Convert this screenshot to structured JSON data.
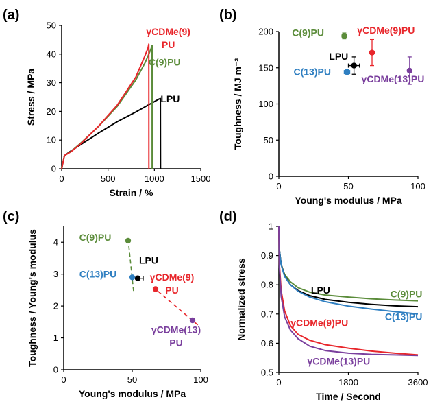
{
  "colors": {
    "LPU": "#000000",
    "C9PU": "#5b8c3a",
    "C13PU": "#2f7fc1",
    "gCDMe9PU": "#e8262b",
    "gCDMe13PU": "#7a3f9d"
  },
  "chart_data": [
    {
      "panel": "(a)",
      "type": "line",
      "xlabel": "Strain / %",
      "ylabel": "Stress / MPa",
      "xlim": [
        0,
        1500
      ],
      "ylim": [
        0,
        50
      ],
      "xticks": [
        "0",
        "500",
        "1000",
        "1500"
      ],
      "yticks": [
        "0",
        "10",
        "20",
        "30",
        "40",
        "50"
      ],
      "series": [
        {
          "key": "LPU",
          "x": [
            0,
            30,
            100,
            200,
            400,
            600,
            800,
            950,
            1050,
            1065,
            1066
          ],
          "y": [
            0,
            4.6,
            6.2,
            8.3,
            12.5,
            16.4,
            19.8,
            22.5,
            24.3,
            24.5,
            0
          ]
        },
        {
          "key": "C9PU",
          "x": [
            0,
            30,
            100,
            200,
            400,
            600,
            800,
            900,
            960,
            975,
            976
          ],
          "y": [
            0,
            4.6,
            6.0,
            8.8,
            14.8,
            21.8,
            31.0,
            37.0,
            41.5,
            43.0,
            0
          ]
        },
        {
          "key": "gCDMe9PU",
          "x": [
            0,
            30,
            100,
            200,
            400,
            600,
            800,
            880,
            930,
            940,
            941
          ],
          "y": [
            0,
            4.6,
            5.9,
            8.6,
            14.9,
            22.2,
            32.0,
            38.0,
            42.0,
            43.5,
            0
          ]
        }
      ],
      "annotations": [
        {
          "key": "gCDMe9PU",
          "lines": [
            "γCDMe(9)",
            "PU"
          ],
          "at": [
            1150,
            46.7
          ]
        },
        {
          "key": "C9PU",
          "lines": [
            "C(9)PU"
          ],
          "at": [
            1110,
            36.0
          ]
        },
        {
          "key": "LPU",
          "lines": [
            "LPU"
          ],
          "at": [
            1170,
            23.2
          ]
        }
      ]
    },
    {
      "panel": "(b)",
      "type": "scatter",
      "xlabel": "Young's modulus / MPa",
      "ylabel": "Toughness / MJ m⁻³",
      "xlim": [
        0,
        100
      ],
      "ylim": [
        0,
        200
      ],
      "xticks": [
        "0",
        "50",
        "100"
      ],
      "yticks": [
        "0",
        "50",
        "100",
        "150",
        "200"
      ],
      "points": [
        {
          "key": "C9PU",
          "x": 47,
          "y": 194,
          "xerr": 1.5,
          "yerr": 4
        },
        {
          "key": "gCDMe9PU",
          "x": 67,
          "y": 171,
          "xerr": 1,
          "yerr": 18
        },
        {
          "key": "LPU",
          "x": 54,
          "y": 153,
          "xerr": 4,
          "yerr": 12
        },
        {
          "key": "C13PU",
          "x": 49,
          "y": 144,
          "xerr": 2,
          "yerr": 4
        },
        {
          "key": "gCDMe13PU",
          "x": 94,
          "y": 146,
          "xerr": 1,
          "yerr": 19
        }
      ],
      "annotations": [
        {
          "key": "C9PU",
          "lines": [
            "C(9)PU"
          ],
          "at": [
            21,
            194
          ]
        },
        {
          "key": "gCDMe9PU",
          "lines": [
            "γCDMe(9)PU"
          ],
          "at": [
            77,
            197
          ]
        },
        {
          "key": "LPU",
          "lines": [
            "LPU"
          ],
          "at": [
            43,
            161
          ]
        },
        {
          "key": "C13PU",
          "lines": [
            "C(13)PU"
          ],
          "at": [
            24,
            140
          ]
        },
        {
          "key": "gCDMe13PU",
          "lines": [
            "γCDMe(13)PU"
          ],
          "at": [
            82,
            130
          ]
        }
      ]
    },
    {
      "panel": "(c)",
      "type": "scatter",
      "xlabel": "Young's modulus / MPa",
      "ylabel": "Toughness / Young's modulus",
      "xlim": [
        0,
        100
      ],
      "ylim": [
        0,
        4.5
      ],
      "xticks": [
        "0",
        "50",
        "100"
      ],
      "yticks": [
        "0",
        "1",
        "2",
        "3",
        "4"
      ],
      "points": [
        {
          "key": "C9PU",
          "x": 47,
          "y": 4.05
        },
        {
          "key": "LPU",
          "x": 54,
          "y": 2.87,
          "xerr": 4
        },
        {
          "key": "C13PU",
          "x": 50,
          "y": 2.9
        },
        {
          "key": "gCDMe9PU",
          "x": 67,
          "y": 2.53
        },
        {
          "key": "gCDMe13PU",
          "x": 94,
          "y": 1.55
        }
      ],
      "trend_lines": [
        {
          "key": "C9PU",
          "x": [
            47,
            51
          ],
          "y": [
            4.1,
            2.45
          ]
        },
        {
          "key": "gCDMe9PU",
          "x": [
            65,
            98
          ],
          "y": [
            2.6,
            1.4
          ]
        }
      ],
      "annotations": [
        {
          "key": "C9PU",
          "lines": [
            "C(9)PU"
          ],
          "at": [
            23,
            4.05
          ]
        },
        {
          "key": "LPU",
          "lines": [
            "LPU"
          ],
          "at": [
            62,
            3.33
          ]
        },
        {
          "key": "C13PU",
          "lines": [
            "C(13)PU"
          ],
          "at": [
            25,
            2.9
          ]
        },
        {
          "key": "gCDMe9PU",
          "lines": [
            "γCDMe(9)",
            "PU"
          ],
          "at": [
            79,
            2.8
          ]
        },
        {
          "key": "gCDMe13PU",
          "lines": [
            "γCDMe(13)",
            "PU"
          ],
          "at": [
            82,
            1.15
          ]
        }
      ]
    },
    {
      "panel": "(d)",
      "type": "line",
      "xlabel": "Time / Second",
      "ylabel": "Normalized stress",
      "xlim": [
        0,
        3600
      ],
      "ylim": [
        0.5,
        1
      ],
      "xticks": [
        "0",
        "1800",
        "3600"
      ],
      "yticks": [
        "0.5",
        "0.6",
        "0.7",
        "0.8",
        "0.9",
        "1"
      ],
      "series": [
        {
          "key": "C9PU",
          "x": [
            0,
            15,
            60,
            150,
            300,
            500,
            800,
            1200,
            1800,
            2400,
            3000,
            3600
          ],
          "y": [
            1.0,
            0.92,
            0.87,
            0.835,
            0.81,
            0.79,
            0.775,
            0.765,
            0.758,
            0.752,
            0.748,
            0.745
          ]
        },
        {
          "key": "LPU",
          "x": [
            0,
            15,
            60,
            150,
            300,
            500,
            800,
            1200,
            1800,
            2400,
            3000,
            3600
          ],
          "y": [
            1.0,
            0.92,
            0.87,
            0.83,
            0.8,
            0.78,
            0.763,
            0.75,
            0.74,
            0.733,
            0.728,
            0.725
          ]
        },
        {
          "key": "C13PU",
          "x": [
            0,
            15,
            60,
            150,
            300,
            500,
            800,
            1200,
            1800,
            2400,
            3000,
            3600
          ],
          "y": [
            1.0,
            0.92,
            0.868,
            0.828,
            0.8,
            0.778,
            0.758,
            0.742,
            0.727,
            0.717,
            0.708,
            0.7
          ]
        },
        {
          "key": "gCDMe9PU",
          "x": [
            0,
            15,
            60,
            150,
            300,
            500,
            800,
            1200,
            1800,
            2400,
            3000,
            3600
          ],
          "y": [
            1.0,
            0.87,
            0.78,
            0.71,
            0.66,
            0.63,
            0.61,
            0.595,
            0.583,
            0.573,
            0.566,
            0.56
          ]
        },
        {
          "key": "gCDMe13PU",
          "x": [
            0,
            15,
            60,
            150,
            300,
            500,
            800,
            1200,
            1800,
            2400,
            3000,
            3600
          ],
          "y": [
            1.0,
            0.86,
            0.76,
            0.69,
            0.645,
            0.615,
            0.59,
            0.575,
            0.566,
            0.562,
            0.56,
            0.558
          ]
        }
      ],
      "annotations": [
        {
          "key": "LPU",
          "lines": [
            "LPU"
          ],
          "at": [
            1080,
            0.77
          ]
        },
        {
          "key": "C9PU",
          "lines": [
            "C(9)PU"
          ],
          "at": [
            3300,
            0.757
          ]
        },
        {
          "key": "C13PU",
          "lines": [
            "C(13)PU"
          ],
          "at": [
            3230,
            0.68
          ]
        },
        {
          "key": "gCDMe9PU",
          "lines": [
            "γCDMe(9)PU"
          ],
          "at": [
            1050,
            0.658
          ]
        },
        {
          "key": "gCDMe13PU",
          "lines": [
            "γCDMe(13)PU"
          ],
          "at": [
            1550,
            0.527
          ]
        }
      ]
    }
  ]
}
